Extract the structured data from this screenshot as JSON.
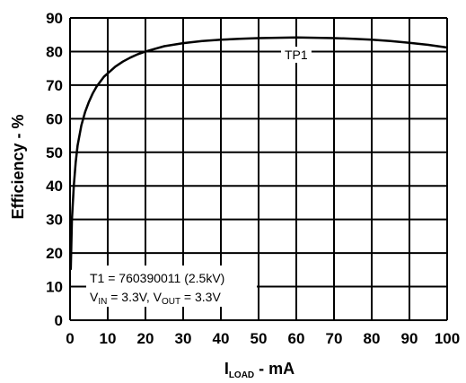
{
  "chart_data": {
    "type": "line",
    "title": "",
    "xlabel_main": "I",
    "xlabel_sub": "LOAD",
    "xlabel_suffix": " - mA",
    "ylabel": "Efficiency - %",
    "xlim": [
      0,
      100
    ],
    "ylim": [
      0,
      90
    ],
    "xticks": [
      0,
      10,
      20,
      30,
      40,
      50,
      60,
      70,
      80,
      90,
      100
    ],
    "yticks": [
      0,
      10,
      20,
      30,
      40,
      50,
      60,
      70,
      80,
      90
    ],
    "grid": true,
    "series": [
      {
        "name": "TP1",
        "color": "#000000",
        "x": [
          0.2,
          0.5,
          1,
          1.5,
          2,
          3,
          4,
          5,
          6,
          7,
          8,
          9,
          10,
          12,
          14,
          16,
          18,
          20,
          25,
          30,
          35,
          40,
          45,
          50,
          55,
          60,
          65,
          70,
          75,
          80,
          85,
          90,
          95,
          100
        ],
        "y": [
          15,
          30,
          40,
          47,
          52,
          58,
          62,
          65,
          67.5,
          69.5,
          71,
          72.5,
          73.5,
          75.5,
          77,
          78.2,
          79.2,
          80,
          81.6,
          82.5,
          83.1,
          83.5,
          83.8,
          84,
          84.1,
          84.2,
          84.1,
          84,
          83.8,
          83.5,
          83.1,
          82.6,
          82,
          81.2
        ]
      }
    ],
    "annotation": {
      "line1": "T1 = 760390011 (2.5kV)",
      "line2_v1": "V",
      "line2_v1_sub": "IN",
      "line2_mid": " = 3.3V, V",
      "line2_v2_sub": "OUT",
      "line2_end": " = 3.3V"
    }
  }
}
